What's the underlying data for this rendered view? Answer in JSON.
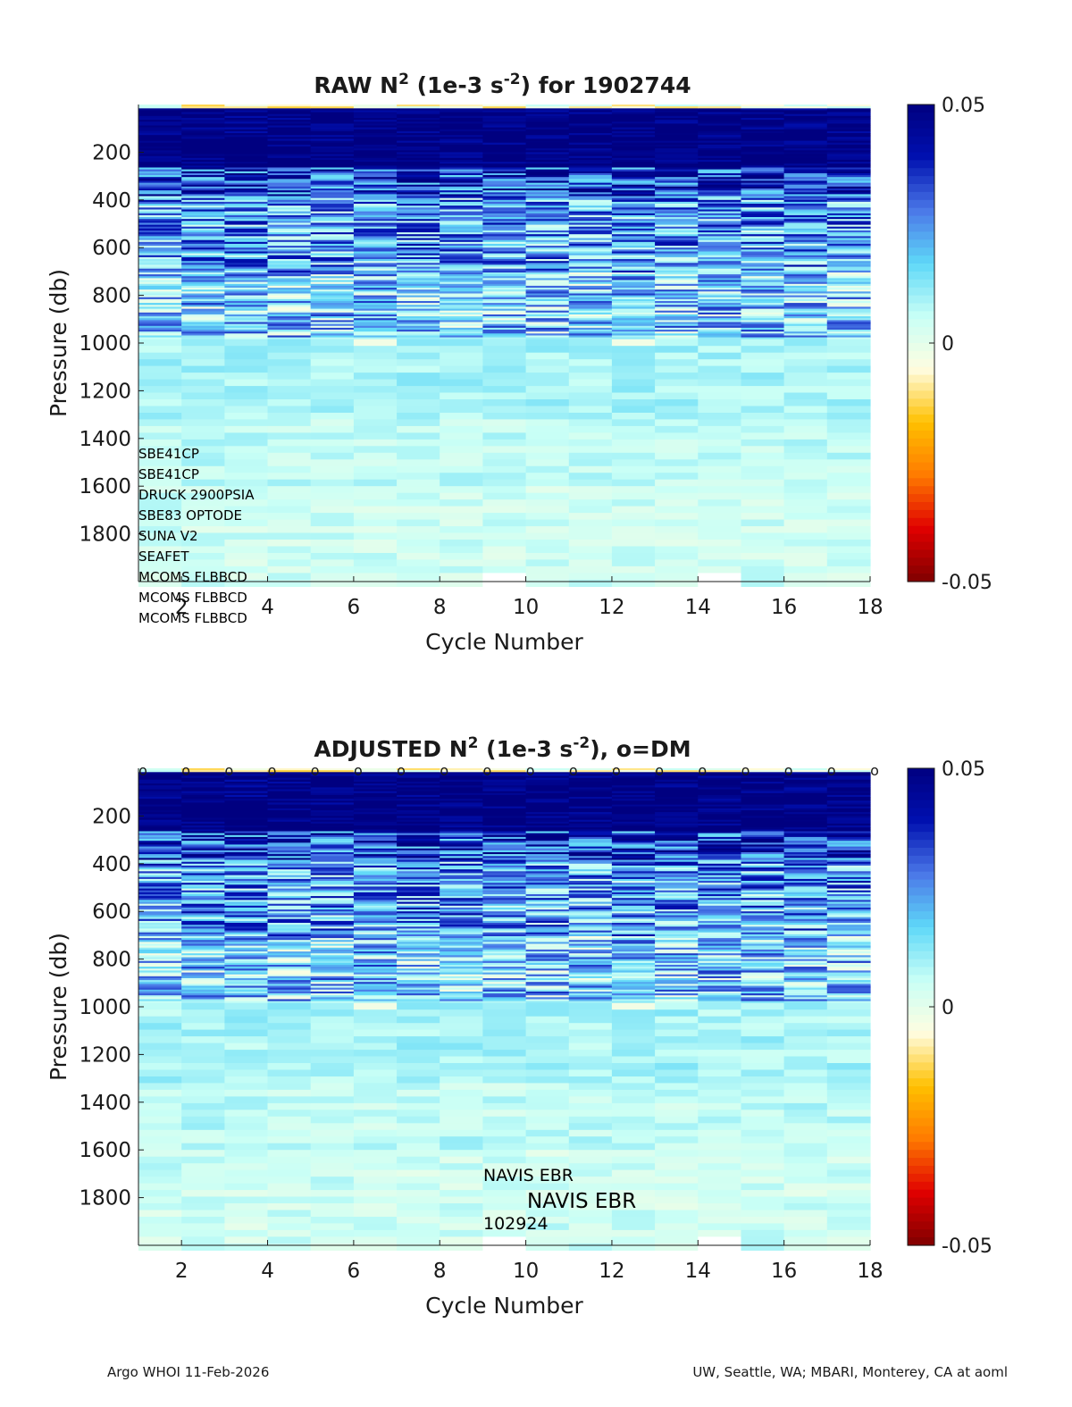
{
  "colors": {
    "ramp": [
      "#800000",
      "#e00000",
      "#ff7a00",
      "#ffc000",
      "#fffde0",
      "#c8fff6",
      "#5fd8f8",
      "#4a78e8",
      "#0010b0",
      "#000080"
    ],
    "ink": "#1a1a1a"
  },
  "chart_data": [
    {
      "type": "heatmap",
      "title_main": "RAW N",
      "title_sup": "2",
      "title_mid": " (1e-3 s",
      "title_sup2": "-2",
      "title_end": ") for 1902744",
      "xlabel": "Cycle Number",
      "ylabel": "Pressure (db)",
      "xlim": [
        1,
        18
      ],
      "ylim": [
        0,
        2000
      ],
      "y_reversed": true,
      "x_ticks": [
        2,
        4,
        6,
        8,
        10,
        12,
        14,
        16,
        18
      ],
      "y_ticks": [
        200,
        400,
        600,
        800,
        1000,
        1200,
        1400,
        1600,
        1800
      ],
      "cycles": [
        1,
        2,
        3,
        4,
        5,
        6,
        7,
        8,
        9,
        10,
        11,
        12,
        13,
        14,
        15,
        16,
        17
      ],
      "colorbar": {
        "min": -0.05,
        "max": 0.05,
        "labels": [
          "0.05",
          "0",
          "-0.05"
        ]
      },
      "value_summary": [
        {
          "pressure": 100,
          "value": 0.05
        },
        {
          "pressure": 200,
          "value": 0.05
        },
        {
          "pressure": 300,
          "value": 0.035
        },
        {
          "pressure": 400,
          "value": 0.025
        },
        {
          "pressure": 600,
          "value": 0.02
        },
        {
          "pressure": 800,
          "value": 0.015
        },
        {
          "pressure": 950,
          "value": 0.01
        },
        {
          "pressure": 1000,
          "value": 0.008
        },
        {
          "pressure": 1200,
          "value": 0.008
        },
        {
          "pressure": 1400,
          "value": 0.005
        },
        {
          "pressure": 1600,
          "value": 0.004
        },
        {
          "pressure": 1800,
          "value": 0.003
        },
        {
          "pressure": 2000,
          "value": 0.002
        }
      ],
      "annotations": [
        "SBE41CP",
        "SBE41CP",
        "DRUCK 2900PSIA",
        "SBE83 OPTODE",
        "SUNA V2",
        "SEAFET",
        "MCOMS FLBBCD",
        "MCOMS FLBBCD",
        "MCOMS FLBBCD"
      ]
    },
    {
      "type": "heatmap",
      "title_main": "ADJUSTED N",
      "title_sup": "2",
      "title_mid": " (1e-3 s",
      "title_sup2": "-2",
      "title_end": "), o=DM",
      "xlabel": "Cycle Number",
      "ylabel": "Pressure (db)",
      "xlim": [
        1,
        18
      ],
      "ylim": [
        0,
        2000
      ],
      "y_reversed": true,
      "x_ticks": [
        2,
        4,
        6,
        8,
        10,
        12,
        14,
        16,
        18
      ],
      "y_ticks": [
        200,
        400,
        600,
        800,
        1000,
        1200,
        1400,
        1600,
        1800
      ],
      "cycles": [
        1,
        2,
        3,
        4,
        5,
        6,
        7,
        8,
        9,
        10,
        11,
        12,
        13,
        14,
        15,
        16,
        17
      ],
      "colorbar": {
        "min": -0.05,
        "max": 0.05,
        "labels": [
          "0.05",
          "0",
          "-0.05"
        ]
      },
      "dm_marker": "o",
      "dm_cycles": [
        1,
        2,
        3,
        4,
        5,
        6,
        7,
        8,
        9,
        10,
        11,
        12,
        13,
        14,
        15,
        16,
        17,
        18
      ],
      "annotations": [
        "NAVIS EBR",
        "NAVIS EBR",
        "102924"
      ]
    }
  ],
  "footer": {
    "left": "Argo WHOI 11-Feb-2026",
    "right": "UW, Seattle, WA; MBARI, Monterey, CA at aoml"
  }
}
